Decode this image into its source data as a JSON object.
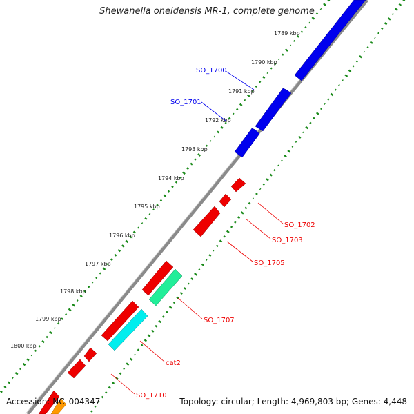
{
  "title": "Shewanella oneidensis MR-1, complete genome",
  "footer": {
    "accession": "Accession: NC_004347",
    "summary": "Topology: circular; Length: 4,969,803 bp; Genes: 4,448"
  },
  "ticks": [
    {
      "label": "1789 kbp"
    },
    {
      "label": "1790 kbp"
    },
    {
      "label": "1791 kbp"
    },
    {
      "label": "1792 kbp"
    },
    {
      "label": "1793 kbp"
    },
    {
      "label": "1794 kbp"
    },
    {
      "label": "1795 kbp"
    },
    {
      "label": "1796 kbp"
    },
    {
      "label": "1797 kbp"
    },
    {
      "label": "1798 kbp"
    },
    {
      "label": "1799 kbp"
    },
    {
      "label": "1800 kbp"
    }
  ],
  "genes": [
    {
      "label": "SO_1700",
      "strand": "+",
      "color": "#0000ee"
    },
    {
      "label": "SO_1701",
      "strand": "+",
      "color": "#0000ee"
    },
    {
      "label": "SO_1702",
      "strand": "-",
      "color": "#ee0000"
    },
    {
      "label": "SO_1703",
      "strand": "-",
      "color": "#ee0000"
    },
    {
      "label": "SO_1705",
      "strand": "-",
      "color": "#ee0000"
    },
    {
      "label": "SO_1707",
      "strand": "-",
      "color": "#22dd88"
    },
    {
      "label": "cat2",
      "strand": "-",
      "color": "#00eeee"
    },
    {
      "label": "SO_1710",
      "strand": "-",
      "color": "#ee0000"
    }
  ],
  "colors": {
    "forward_cds": "#0000ee",
    "reverse_cds": "#ee0000",
    "backbone": "#888888",
    "gc_dots": "#1a8a1a",
    "orange_feature": "#ff9900"
  }
}
